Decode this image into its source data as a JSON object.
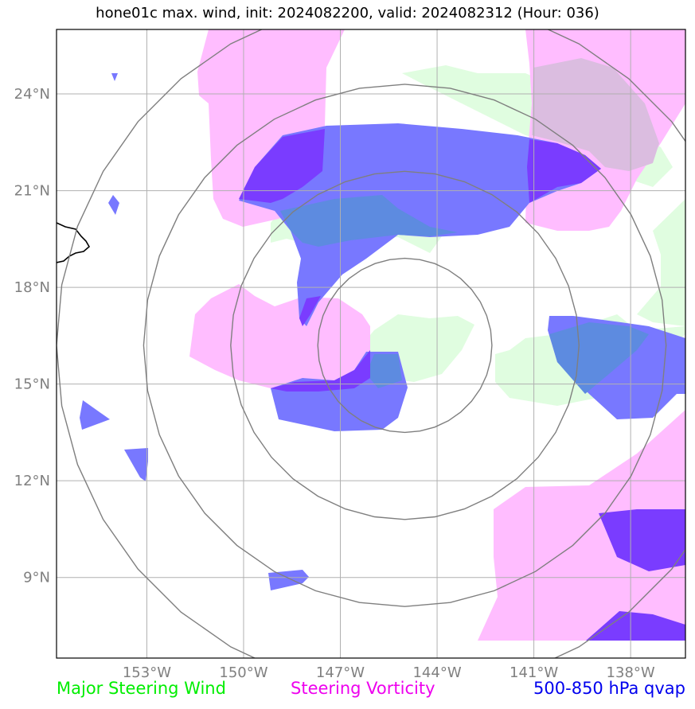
{
  "title": "hone01c max. wind, init: 2024082200, valid: 2024082312 (Hour: 036)",
  "map": {
    "extent": {
      "lon_min": -155.8,
      "lon_max": -136.3,
      "lat_min": 6.5,
      "lat_max": 26.0
    },
    "lon_ticks": [
      -153,
      -150,
      -147,
      -144,
      -141,
      -138
    ],
    "lon_tick_labels": [
      "153°W",
      "150°W",
      "147°W",
      "144°W",
      "141°W",
      "138°W"
    ],
    "lat_ticks": [
      9,
      12,
      15,
      18,
      21,
      24
    ],
    "lat_tick_labels": [
      "9°N",
      "12°N",
      "15°N",
      "18°N",
      "21°N",
      "24°N"
    ],
    "range_ring_center": {
      "lon": -145.0,
      "lat": 16.2
    },
    "range_ring_radii_deg": [
      2.7,
      5.4,
      8.1,
      10.8
    ],
    "colors": {
      "steering_wind": "#e0fde0",
      "steering_vorticity": "#ffbdff",
      "qvap": "#7878ff",
      "qvap_strong": "#7a3cff",
      "ring": "#7f7f7f",
      "grid": "#b0b0b0",
      "coast": "#000000",
      "tick_text": "#808080"
    }
  },
  "legend": [
    {
      "label": "Major Steering Wind",
      "color": "#00ee00"
    },
    {
      "label": "Steering Vorticity",
      "color": "#ee00ee"
    },
    {
      "label": "500-850 hPa qvap",
      "color": "#0000ee"
    }
  ]
}
